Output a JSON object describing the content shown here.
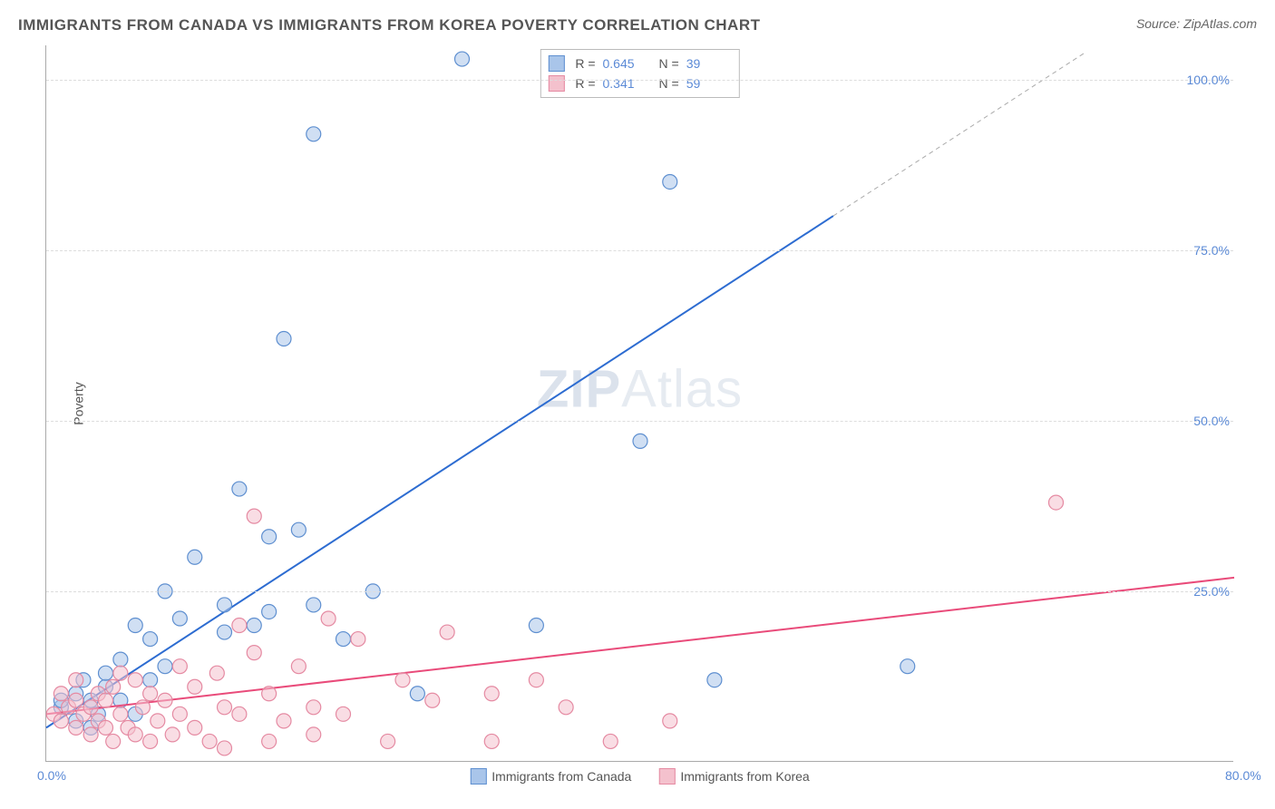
{
  "title": "IMMIGRANTS FROM CANADA VS IMMIGRANTS FROM KOREA POVERTY CORRELATION CHART",
  "source": "Source: ZipAtlas.com",
  "watermark_a": "ZIP",
  "watermark_b": "Atlas",
  "ylabel": "Poverty",
  "chart": {
    "type": "scatter",
    "xlim": [
      0,
      80
    ],
    "ylim": [
      0,
      105
    ],
    "x_ticks": [
      {
        "v": 0,
        "label": "0.0%"
      },
      {
        "v": 80,
        "label": "80.0%"
      }
    ],
    "y_ticks": [
      {
        "v": 25,
        "label": "25.0%"
      },
      {
        "v": 50,
        "label": "50.0%"
      },
      {
        "v": 75,
        "label": "75.0%"
      },
      {
        "v": 100,
        "label": "100.0%"
      }
    ],
    "grid_color": "#dddddd",
    "axis_color": "#aaaaaa",
    "background": "#ffffff",
    "marker_radius": 8,
    "marker_stroke_width": 1.2,
    "line_width": 2,
    "series": [
      {
        "name": "Immigrants from Canada",
        "color_fill": "#a9c5ea",
        "color_stroke": "#5e8fd0",
        "line_color": "#2d6cd1",
        "R": "0.645",
        "N": "39",
        "reg_line": {
          "x1": 0,
          "y1": 5,
          "x2": 53,
          "y2": 80
        },
        "reg_line_dash": {
          "x1": 53,
          "y1": 80,
          "x2": 70,
          "y2": 104
        },
        "points": [
          [
            1,
            8
          ],
          [
            1,
            9
          ],
          [
            2,
            6
          ],
          [
            2,
            10
          ],
          [
            2.5,
            12
          ],
          [
            3,
            5
          ],
          [
            3,
            9
          ],
          [
            3.5,
            7
          ],
          [
            4,
            11
          ],
          [
            4,
            13
          ],
          [
            5,
            9
          ],
          [
            5,
            15
          ],
          [
            6,
            7
          ],
          [
            6,
            20
          ],
          [
            7,
            12
          ],
          [
            7,
            18
          ],
          [
            8,
            14
          ],
          [
            8,
            25
          ],
          [
            9,
            21
          ],
          [
            10,
            30
          ],
          [
            12,
            19
          ],
          [
            12,
            23
          ],
          [
            13,
            40
          ],
          [
            14,
            20
          ],
          [
            15,
            33
          ],
          [
            15,
            22
          ],
          [
            16,
            62
          ],
          [
            17,
            34
          ],
          [
            18,
            23
          ],
          [
            18,
            92
          ],
          [
            20,
            18
          ],
          [
            22,
            25
          ],
          [
            25,
            10
          ],
          [
            28,
            103
          ],
          [
            33,
            20
          ],
          [
            40,
            47
          ],
          [
            42,
            85
          ],
          [
            45,
            12
          ],
          [
            58,
            14
          ]
        ]
      },
      {
        "name": "Immigrants from Korea",
        "color_fill": "#f4c1cd",
        "color_stroke": "#e58aa2",
        "line_color": "#e94b7a",
        "R": "0.341",
        "N": "59",
        "reg_line": {
          "x1": 0,
          "y1": 7,
          "x2": 80,
          "y2": 27
        },
        "points": [
          [
            0.5,
            7
          ],
          [
            1,
            6
          ],
          [
            1,
            10
          ],
          [
            1.5,
            8
          ],
          [
            2,
            5
          ],
          [
            2,
            9
          ],
          [
            2,
            12
          ],
          [
            2.5,
            7
          ],
          [
            3,
            4
          ],
          [
            3,
            8
          ],
          [
            3.5,
            6
          ],
          [
            3.5,
            10
          ],
          [
            4,
            5
          ],
          [
            4,
            9
          ],
          [
            4.5,
            3
          ],
          [
            4.5,
            11
          ],
          [
            5,
            7
          ],
          [
            5,
            13
          ],
          [
            5.5,
            5
          ],
          [
            6,
            4
          ],
          [
            6,
            12
          ],
          [
            6.5,
            8
          ],
          [
            7,
            3
          ],
          [
            7,
            10
          ],
          [
            7.5,
            6
          ],
          [
            8,
            9
          ],
          [
            8.5,
            4
          ],
          [
            9,
            14
          ],
          [
            9,
            7
          ],
          [
            10,
            5
          ],
          [
            10,
            11
          ],
          [
            11,
            3
          ],
          [
            11.5,
            13
          ],
          [
            12,
            8
          ],
          [
            12,
            2
          ],
          [
            13,
            20
          ],
          [
            13,
            7
          ],
          [
            14,
            36
          ],
          [
            14,
            16
          ],
          [
            15,
            3
          ],
          [
            15,
            10
          ],
          [
            16,
            6
          ],
          [
            17,
            14
          ],
          [
            18,
            8
          ],
          [
            18,
            4
          ],
          [
            19,
            21
          ],
          [
            20,
            7
          ],
          [
            21,
            18
          ],
          [
            23,
            3
          ],
          [
            24,
            12
          ],
          [
            26,
            9
          ],
          [
            27,
            19
          ],
          [
            30,
            3
          ],
          [
            30,
            10
          ],
          [
            33,
            12
          ],
          [
            35,
            8
          ],
          [
            38,
            3
          ],
          [
            42,
            6
          ],
          [
            68,
            38
          ]
        ]
      }
    ]
  },
  "legend_top": [
    {
      "series_idx": 0,
      "R_label": "R =",
      "N_label": "N ="
    },
    {
      "series_idx": 1,
      "R_label": "R =",
      "N_label": "N ="
    }
  ],
  "legend_bottom": [
    {
      "series_idx": 0
    },
    {
      "series_idx": 1
    }
  ]
}
